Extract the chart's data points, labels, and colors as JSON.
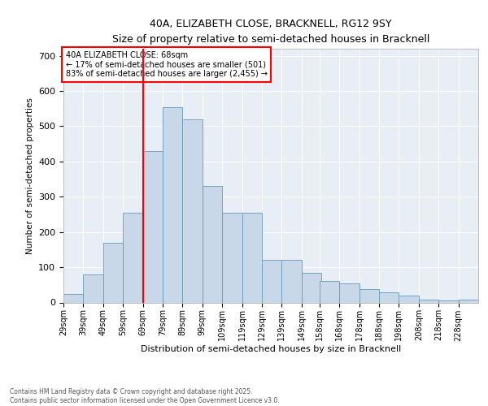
{
  "title1": "40A, ELIZABETH CLOSE, BRACKNELL, RG12 9SY",
  "title2": "Size of property relative to semi-detached houses in Bracknell",
  "xlabel": "Distribution of semi-detached houses by size in Bracknell",
  "ylabel": "Number of semi-detached properties",
  "bar_color": "#c8d8e8",
  "bar_edge_color": "#6699bb",
  "background_color": "#e8eef5",
  "vline_color": "red",
  "vline_x": 69,
  "annotation_title": "40A ELIZABETH CLOSE: 68sqm",
  "annotation_line1": "← 17% of semi-detached houses are smaller (501)",
  "annotation_line2": "83% of semi-detached houses are larger (2,455) →",
  "bin_starts": [
    29,
    39,
    49,
    59,
    69,
    79,
    89,
    99,
    109,
    119,
    129,
    139,
    149,
    158,
    168,
    178,
    188,
    198,
    208,
    218,
    228
  ],
  "bin_labels": [
    "29sqm",
    "39sqm",
    "49sqm",
    "59sqm",
    "69sqm",
    "79sqm",
    "89sqm",
    "99sqm",
    "109sqm",
    "119sqm",
    "129sqm",
    "139sqm",
    "149sqm",
    "158sqm",
    "168sqm",
    "178sqm",
    "188sqm",
    "198sqm",
    "208sqm",
    "218sqm",
    "228sqm"
  ],
  "bar_heights": [
    25,
    80,
    170,
    255,
    430,
    555,
    520,
    330,
    255,
    255,
    120,
    120,
    85,
    60,
    55,
    38,
    28,
    20,
    8,
    5,
    8
  ],
  "ylim": [
    0,
    720
  ],
  "yticks": [
    0,
    100,
    200,
    300,
    400,
    500,
    600,
    700
  ],
  "footer1": "Contains HM Land Registry data © Crown copyright and database right 2025.",
  "footer2": "Contains public sector information licensed under the Open Government Licence v3.0."
}
